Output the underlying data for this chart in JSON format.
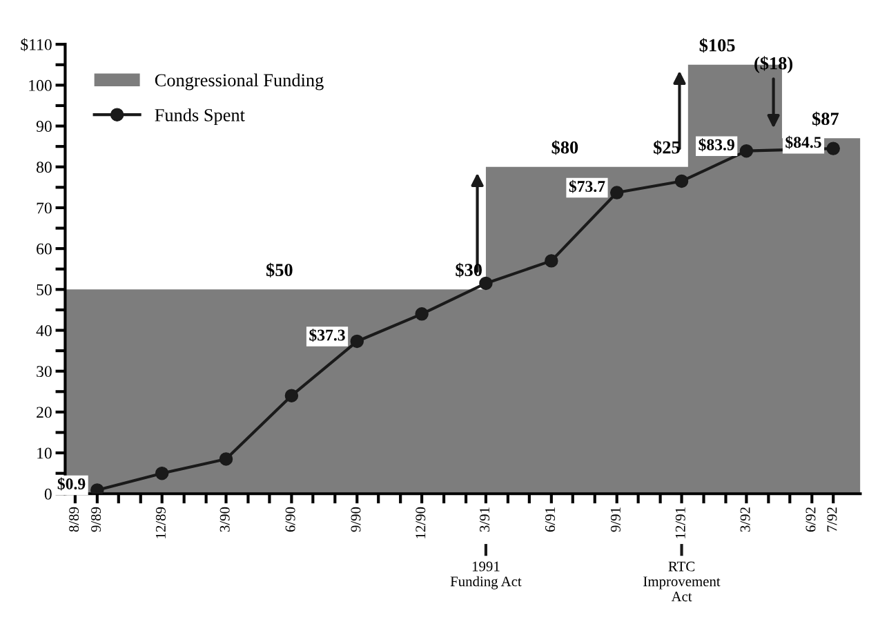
{
  "chart_data": {
    "type": "line",
    "series": [
      {
        "name": "Congressional Funding",
        "type": "area",
        "color": "#7d7d7d",
        "x": [
          "1989-07-18",
          "1991-03",
          "1991-03",
          "1991-12-10",
          "1991-12-10",
          "1992-04-20",
          "1992-04-20",
          "1992-08-08"
        ],
        "values": [
          50,
          50,
          80,
          80,
          105,
          105,
          87,
          87
        ]
      },
      {
        "name": "Funds Spent",
        "color": "#1a1a1a",
        "marker": "circle",
        "x": [
          "1989-09",
          "1989-12",
          "1990-03",
          "1990-06",
          "1990-09",
          "1990-12",
          "1991-03",
          "1991-06",
          "1991-09",
          "1991-12",
          "1992-03",
          "1992-07"
        ],
        "values": [
          0.9,
          5,
          8.5,
          24,
          37.3,
          44,
          51.5,
          57,
          73.7,
          76.5,
          83.9,
          84.5
        ],
        "value_labels": [
          "$0.9",
          null,
          null,
          null,
          "$37.3",
          null,
          null,
          null,
          "$73.7",
          null,
          "$83.9",
          "$84.5"
        ]
      }
    ],
    "xlim": [
      "1989-07-18",
      "1992-08-08"
    ],
    "xticks": [
      {
        "value": "1989-08",
        "label": "8/89"
      },
      {
        "value": "1989-09",
        "label": "9/89"
      },
      {
        "value": "1989-10",
        "label": null
      },
      {
        "value": "1989-11",
        "label": null
      },
      {
        "value": "1989-12",
        "label": "12/89"
      },
      {
        "value": "1990-01",
        "label": null
      },
      {
        "value": "1990-02",
        "label": null
      },
      {
        "value": "1990-03",
        "label": "3/90"
      },
      {
        "value": "1990-04",
        "label": null
      },
      {
        "value": "1990-05",
        "label": null
      },
      {
        "value": "1990-06",
        "label": "6/90"
      },
      {
        "value": "1990-07",
        "label": null
      },
      {
        "value": "1990-08",
        "label": null
      },
      {
        "value": "1990-09",
        "label": "9/90"
      },
      {
        "value": "1990-10",
        "label": null
      },
      {
        "value": "1990-11",
        "label": null
      },
      {
        "value": "1990-12",
        "label": "12/90"
      },
      {
        "value": "1991-01",
        "label": null
      },
      {
        "value": "1991-02",
        "label": null
      },
      {
        "value": "1991-03",
        "label": "3/91"
      },
      {
        "value": "1991-04",
        "label": null
      },
      {
        "value": "1991-05",
        "label": null
      },
      {
        "value": "1991-06",
        "label": "6/91"
      },
      {
        "value": "1991-07",
        "label": null
      },
      {
        "value": "1991-08",
        "label": null
      },
      {
        "value": "1991-09",
        "label": "9/91"
      },
      {
        "value": "1991-10",
        "label": null
      },
      {
        "value": "1991-11",
        "label": null
      },
      {
        "value": "1991-12",
        "label": "12/91"
      },
      {
        "value": "1992-01",
        "label": null
      },
      {
        "value": "1992-02",
        "label": null
      },
      {
        "value": "1992-03",
        "label": "3/92"
      },
      {
        "value": "1992-04",
        "label": null
      },
      {
        "value": "1992-05",
        "label": null
      },
      {
        "value": "1992-06",
        "label": "6/92"
      },
      {
        "value": "1992-07",
        "label": "7/92"
      }
    ],
    "ylim": [
      0,
      110
    ],
    "yticks": [
      0,
      {
        "value": 5,
        "label": null
      },
      10,
      {
        "value": 15,
        "label": null
      },
      20,
      {
        "value": 25,
        "label": null
      },
      30,
      {
        "value": 35,
        "label": null
      },
      40,
      {
        "value": 45,
        "label": null
      },
      50,
      {
        "value": 55,
        "label": null
      },
      60,
      {
        "value": 65,
        "label": null
      },
      70,
      {
        "value": 75,
        "label": null
      },
      80,
      {
        "value": 85,
        "label": null
      },
      90,
      {
        "value": 95,
        "label": null
      },
      100,
      {
        "value": 105,
        "label": null
      },
      {
        "value": 110,
        "label": "$110"
      }
    ],
    "annotations": [
      {
        "text": "$50",
        "x": "1990-05-15",
        "y": 50
      },
      {
        "text": "$30",
        "x": "1991-02-05",
        "y": 50
      },
      {
        "text": "$80",
        "x": "1991-06-20",
        "y": 80
      },
      {
        "text": "$25",
        "x": "1991-11-10",
        "y": 80
      },
      {
        "text": "$105",
        "x": "1992-01-20",
        "y": 105
      },
      "($18)",
      {
        "text": "$87",
        "x": "1992-06-20",
        "y": 87
      }
    ],
    "ref_lines": [
      {
        "axis": "x",
        "value": "1991-03",
        "label": "1991\nFunding Act"
      },
      {
        "axis": "x",
        "value": "1991-12",
        "label": "RTC\nImprovement\nAct"
      }
    ],
    "grid": false,
    "legend": "top left"
  }
}
